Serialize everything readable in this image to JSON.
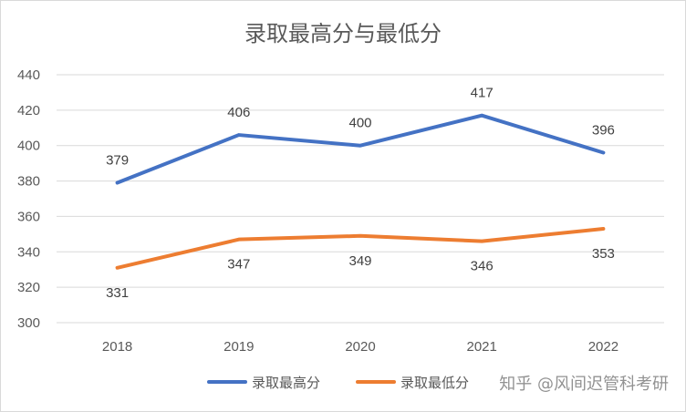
{
  "chart_data": {
    "type": "line",
    "title": "录取最高分与最低分",
    "categories": [
      "2018",
      "2019",
      "2020",
      "2021",
      "2022"
    ],
    "ylim": [
      300,
      440
    ],
    "yticks": [
      300,
      320,
      340,
      360,
      380,
      400,
      420,
      440
    ],
    "grid": true,
    "legend_position": "bottom",
    "series": [
      {
        "name": "录取最高分",
        "values": [
          379,
          406,
          400,
          417,
          396
        ],
        "color": "#4472c4"
      },
      {
        "name": "录取最低分",
        "values": [
          331,
          347,
          349,
          346,
          353
        ],
        "color": "#ed7d31"
      }
    ]
  },
  "watermark": "知乎 @风间迟管科考研"
}
